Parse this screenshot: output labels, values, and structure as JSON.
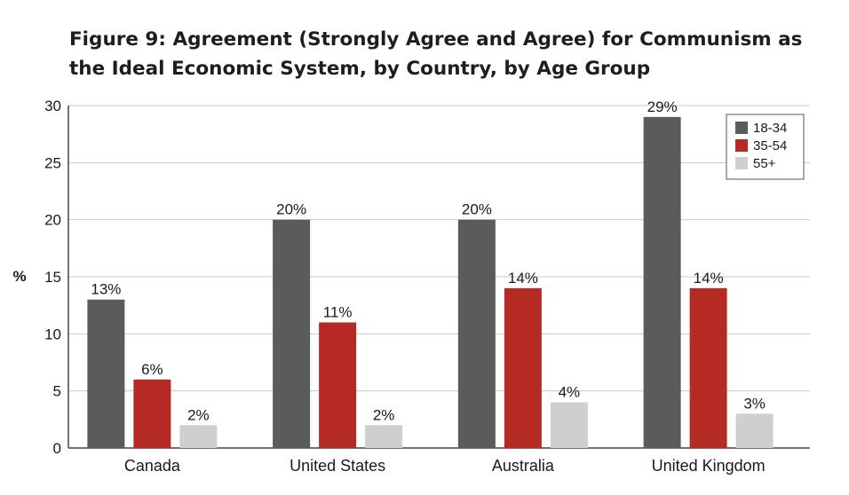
{
  "chart_data": {
    "type": "bar",
    "title": "Figure 9: Agreement (Strongly Agree and Agree) for Communism as the Ideal Economic System, by Country, by Age Group",
    "ylabel": "%",
    "xlabel": "",
    "ylim": [
      0,
      30
    ],
    "yticks": [
      0,
      5,
      10,
      15,
      20,
      25,
      30
    ],
    "grid": true,
    "legend_position": "top-right",
    "categories": [
      "Canada",
      "United States",
      "Australia",
      "United Kingdom"
    ],
    "series": [
      {
        "name": "18-34",
        "color": "#5a5c5c",
        "values": [
          13,
          20,
          20,
          29
        ],
        "labels": [
          "13%",
          "20%",
          "20%",
          "29%"
        ]
      },
      {
        "name": "35-54",
        "color": "#b52a22",
        "values": [
          6,
          11,
          14,
          14
        ],
        "labels": [
          "6%",
          "11%",
          "14%",
          "14%"
        ]
      },
      {
        "name": "55+",
        "color": "#cfcfcf",
        "values": [
          2,
          2,
          4,
          3
        ],
        "labels": [
          "2%",
          "2%",
          "4%",
          "3%"
        ]
      }
    ]
  }
}
